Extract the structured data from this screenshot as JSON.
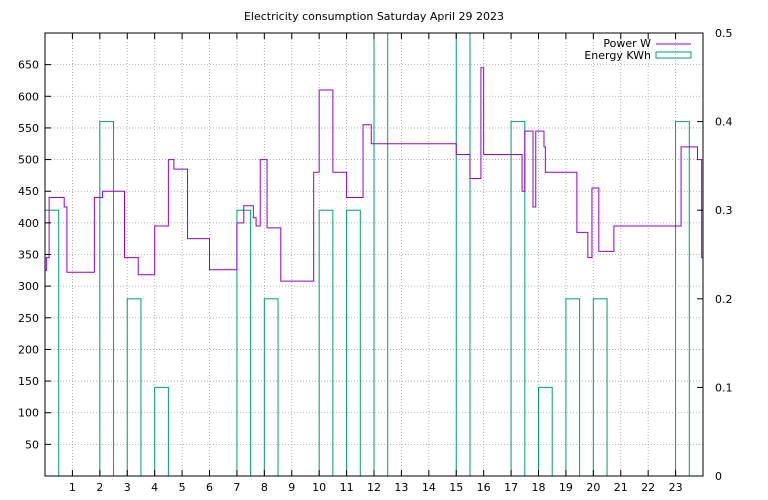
{
  "chart_data": {
    "type": "line",
    "title": "Electricity consumption Saturday April 29 2023",
    "grid": true,
    "legend_placement": "top-right",
    "x_ticks": [
      "1",
      "2",
      "3",
      "4",
      "5",
      "6",
      "7",
      "8",
      "9",
      "10",
      "11",
      "12",
      "13",
      "14",
      "15",
      "16",
      "17",
      "18",
      "19",
      "20",
      "21",
      "22",
      "23"
    ],
    "xlim": [
      0,
      24
    ],
    "y_ticks": [
      "50",
      "100",
      "150",
      "200",
      "250",
      "300",
      "350",
      "400",
      "450",
      "500",
      "550",
      "600",
      "650"
    ],
    "ylim": [
      0,
      700
    ],
    "y2_ticks": [
      "0",
      "0.1",
      "0.2",
      "0.3",
      "0.4",
      "0.5"
    ],
    "y2lim": [
      0,
      0.5
    ],
    "series": [
      {
        "name": "Power W",
        "axis": "y",
        "color": "#9400d3",
        "style": "step",
        "x": [
          0.0,
          0.05,
          0.15,
          0.7,
          0.8,
          0.9,
          1.8,
          2.1,
          2.9,
          2.95,
          3.4,
          4.0,
          4.5,
          4.7,
          5.2,
          6.0,
          7.0,
          7.25,
          7.6,
          7.7,
          7.85,
          8.1,
          8.6,
          8.7,
          9.8,
          10.0,
          10.5,
          11.0,
          11.6,
          11.9,
          12.0,
          14.0,
          15.0,
          15.5,
          15.9,
          16.0,
          16.9,
          17.4,
          17.5,
          17.8,
          17.9,
          18.2,
          18.25,
          19.4,
          19.8,
          19.95,
          20.2,
          20.75,
          21.0,
          22.0,
          23.0,
          23.2,
          23.8,
          23.95,
          24.0
        ],
        "y": [
          325,
          345,
          440,
          425,
          322,
          322,
          440,
          450,
          345,
          345,
          318,
          395,
          500,
          485,
          375,
          326,
          400,
          427,
          408,
          395,
          500,
          392,
          308,
          308,
          480,
          610,
          480,
          440,
          555,
          525,
          525,
          525,
          508,
          470,
          645,
          508,
          508,
          450,
          545,
          425,
          545,
          520,
          480,
          385,
          345,
          455,
          355,
          395,
          395,
          395,
          395,
          520,
          500,
          345,
          345
        ]
      },
      {
        "name": "Energy KWh",
        "axis": "y2",
        "color": "#009e73",
        "style": "bars",
        "x": [
          0,
          1,
          2,
          3,
          4,
          5,
          6,
          7,
          8,
          9,
          10,
          11,
          12,
          13,
          14,
          15,
          16,
          17,
          18,
          19,
          20,
          21,
          22,
          23
        ],
        "y": [
          0.3,
          0,
          0.4,
          0.2,
          0.1,
          0,
          0,
          0.3,
          0.2,
          0,
          0.3,
          0.3,
          0.5,
          0,
          0,
          0.5,
          0,
          0.4,
          0.1,
          0.2,
          0.2,
          0,
          0,
          0.4
        ]
      }
    ]
  }
}
